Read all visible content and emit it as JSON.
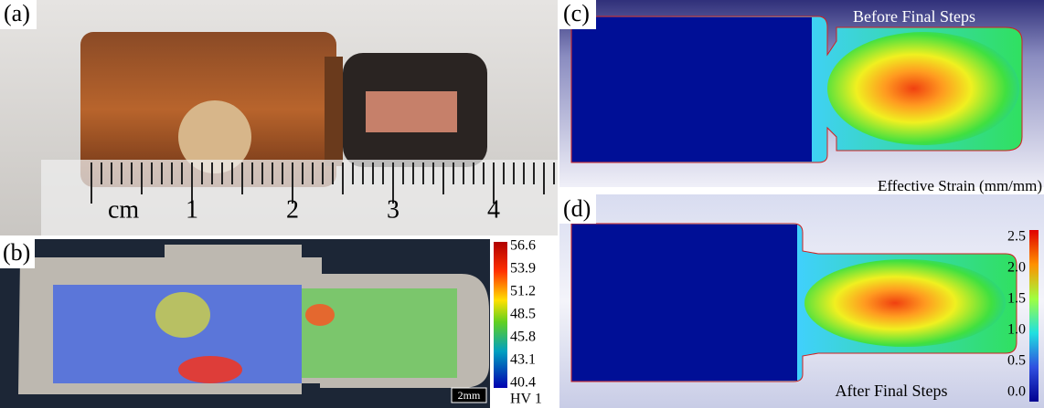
{
  "panels": {
    "a": {
      "label": "(a)",
      "ruler": {
        "unit": "cm",
        "numbers": [
          "1",
          "2",
          "3",
          "4"
        ]
      }
    },
    "b": {
      "label": "(b)",
      "scale_bar": "2mm",
      "colorbar": {
        "ticks": [
          "56.6",
          "53.9",
          "51.2",
          "48.5",
          "45.8",
          "43.1",
          "40.4"
        ],
        "unit": "HV 1"
      }
    },
    "c": {
      "label": "(c)",
      "caption": "Before Final Steps"
    },
    "d": {
      "label": "(d)",
      "caption": "After Final Steps",
      "colorbar": {
        "title": "Effective Strain (mm/mm)",
        "ticks": [
          "2.5",
          "2.0",
          "1.5",
          "1.0",
          "0.5",
          "0.0"
        ]
      }
    }
  }
}
